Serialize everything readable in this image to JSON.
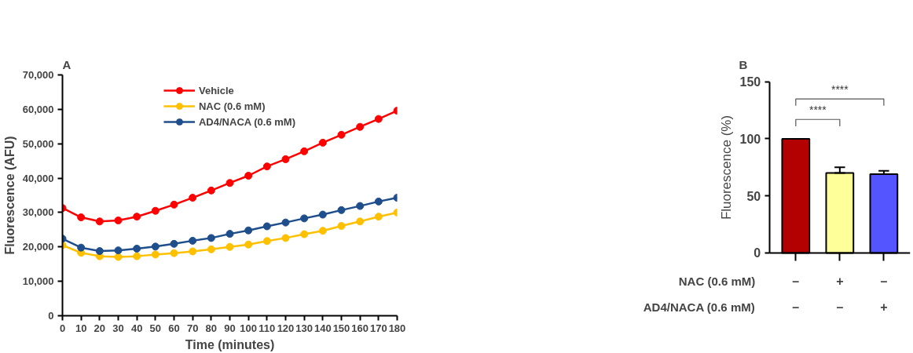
{
  "chart_data": [
    {
      "type": "line",
      "title": "A",
      "xlabel": "Time (minutes)",
      "ylabel": "Fluorescence (AFU)",
      "x": [
        0,
        10,
        20,
        30,
        40,
        50,
        60,
        70,
        80,
        90,
        100,
        110,
        120,
        130,
        140,
        150,
        160,
        170,
        180
      ],
      "series": [
        {
          "name": "Vehicle",
          "color": "#ff0000",
          "values": [
            31300,
            28600,
            27400,
            27700,
            28800,
            30500,
            32300,
            34300,
            36400,
            38600,
            40700,
            43400,
            45500,
            47800,
            50300,
            52600,
            54900,
            57200,
            59600
          ]
        },
        {
          "name": "NAC (0.6 mM)",
          "color": "#ffc000",
          "values": [
            20500,
            18300,
            17300,
            17100,
            17300,
            17800,
            18200,
            18700,
            19300,
            20000,
            20700,
            21700,
            22600,
            23700,
            24700,
            26100,
            27400,
            28800,
            30000
          ]
        },
        {
          "name": "AD4/NACA (0.6 mM)",
          "color": "#1f4e8c",
          "values": [
            22400,
            19800,
            18800,
            19000,
            19500,
            20100,
            20900,
            21800,
            22600,
            23800,
            24800,
            26000,
            27100,
            28300,
            29400,
            30700,
            31900,
            33200,
            34300
          ]
        }
      ],
      "xlim": [
        0,
        180
      ],
      "xticks": [
        0,
        10,
        20,
        30,
        40,
        50,
        60,
        70,
        80,
        90,
        100,
        110,
        120,
        130,
        140,
        150,
        160,
        170,
        180
      ],
      "ylim": [
        0,
        70000
      ],
      "yticks": [
        0,
        {
          "value": 10000,
          "label": "10,000"
        },
        {
          "value": 20000,
          "label": "20,000"
        },
        {
          "value": 30000,
          "label": "30,000"
        },
        {
          "value": 40000,
          "label": "40,000"
        },
        {
          "value": 50000,
          "label": "50,000"
        },
        {
          "value": 60000,
          "label": "60,000"
        },
        {
          "value": 70000,
          "label": "70,000"
        }
      ],
      "grid": false,
      "legend": "top",
      "marker": "circle",
      "line_style": "solid"
    },
    {
      "type": "bar",
      "title": "B",
      "ylabel": "Fluorescence (%)",
      "categories": [
        "–\n–",
        "+\n–",
        "–\n+"
      ],
      "values": [
        100,
        70,
        69
      ],
      "colors": [
        "#b30000",
        "#ffff99",
        "#5555ff"
      ],
      "errors": [
        null,
        [
          70,
          75
        ],
        [
          69,
          72
        ]
      ],
      "ylim": [
        0,
        150
      ],
      "yticks": [
        0,
        50,
        100,
        150
      ],
      "grid": false,
      "annotations": [
        "****",
        "****",
        "NAC (0.6 mM)",
        "AD4/NACA (0.6 mM)"
      ]
    }
  ]
}
